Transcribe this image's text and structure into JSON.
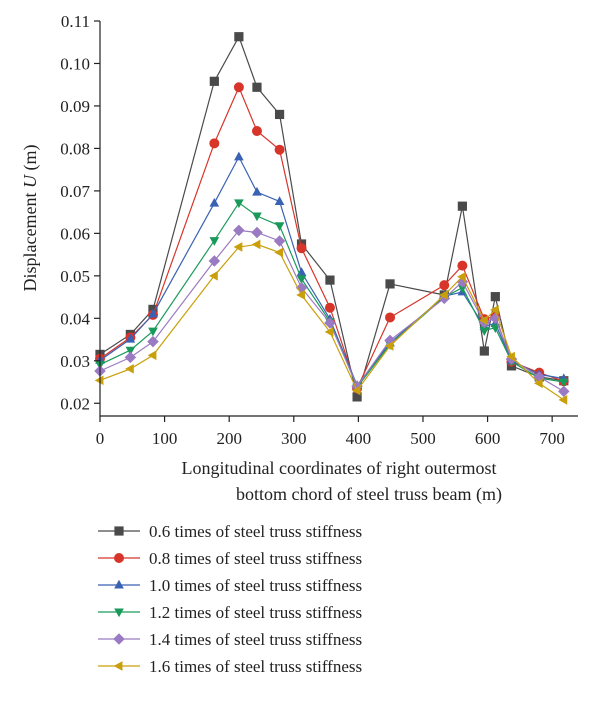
{
  "chart_data": {
    "type": "line",
    "title": "",
    "xlabel_line1": "Longitudinal coordinates of right outermost",
    "xlabel_line2": "bottom chord of steel truss beam (m)",
    "ylabel_prefix": "Displacement",
    "ylabel_var": "U",
    "ylabel_unit": "(m)",
    "xlim": [
      0,
      740
    ],
    "ylim": [
      0.017,
      0.11
    ],
    "xticks": [
      "0",
      "100",
      "200",
      "300",
      "400",
      "500",
      "600",
      "700"
    ],
    "yticks": [
      "0.02",
      "0.03",
      "0.04",
      "0.05",
      "0.06",
      "0.07",
      "0.08",
      "0.09",
      "0.10",
      "0.11"
    ],
    "x": [
      0,
      47,
      82,
      177,
      215,
      243,
      278,
      312,
      356,
      398,
      449,
      533,
      561,
      595,
      612,
      637,
      680,
      718
    ],
    "legend_position": "bottom",
    "series": [
      {
        "name": "0.6 times of steel truss stiffness",
        "color": "#4a4a4a",
        "marker": "square",
        "values": [
          0.0315,
          0.0362,
          0.0421,
          0.0958,
          0.1063,
          0.0944,
          0.088,
          0.0575,
          0.049,
          0.0215,
          0.0481,
          0.0455,
          0.0664,
          0.0323,
          0.0451,
          0.0288,
          0.0262,
          0.0253
        ]
      },
      {
        "name": "0.8 times of steel truss stiffness",
        "color": "#d7342a",
        "marker": "circle",
        "values": [
          0.0305,
          0.0355,
          0.0408,
          0.0812,
          0.0944,
          0.0841,
          0.0797,
          0.0565,
          0.0425,
          0.0235,
          0.0402,
          0.0478,
          0.0524,
          0.0398,
          0.0405,
          0.0298,
          0.0272,
          0.0252
        ]
      },
      {
        "name": "1.0 times of steel truss stiffness",
        "color": "#3a62b2",
        "marker": "triangle-up",
        "values": [
          0.0301,
          0.0351,
          0.041,
          0.0671,
          0.078,
          0.0697,
          0.0675,
          0.0508,
          0.0398,
          0.0242,
          0.0342,
          0.0452,
          0.0462,
          0.0381,
          0.0388,
          0.03,
          0.0268,
          0.0258
        ]
      },
      {
        "name": "1.2 times of steel truss stiffness",
        "color": "#1a9a5a",
        "marker": "triangle-down",
        "values": [
          0.0291,
          0.0325,
          0.037,
          0.0583,
          0.0672,
          0.0641,
          0.0618,
          0.0493,
          0.0392,
          0.0238,
          0.0338,
          0.045,
          0.0472,
          0.0371,
          0.0378,
          0.0298,
          0.0259,
          0.025
        ]
      },
      {
        "name": "1.4 times of steel truss stiffness",
        "color": "#9a7ac2",
        "marker": "diamond",
        "values": [
          0.0276,
          0.0308,
          0.0345,
          0.0535,
          0.0607,
          0.0602,
          0.0582,
          0.0472,
          0.0389,
          0.024,
          0.0348,
          0.0447,
          0.0486,
          0.039,
          0.04,
          0.0304,
          0.0262,
          0.0228
        ]
      },
      {
        "name": "1.6 times of steel truss stiffness",
        "color": "#c9a00c",
        "marker": "triangle-left",
        "values": [
          0.0254,
          0.0281,
          0.0313,
          0.05,
          0.0568,
          0.0574,
          0.0555,
          0.0455,
          0.0368,
          0.023,
          0.0335,
          0.0455,
          0.0498,
          0.0395,
          0.042,
          0.031,
          0.0247,
          0.0208
        ]
      }
    ]
  }
}
